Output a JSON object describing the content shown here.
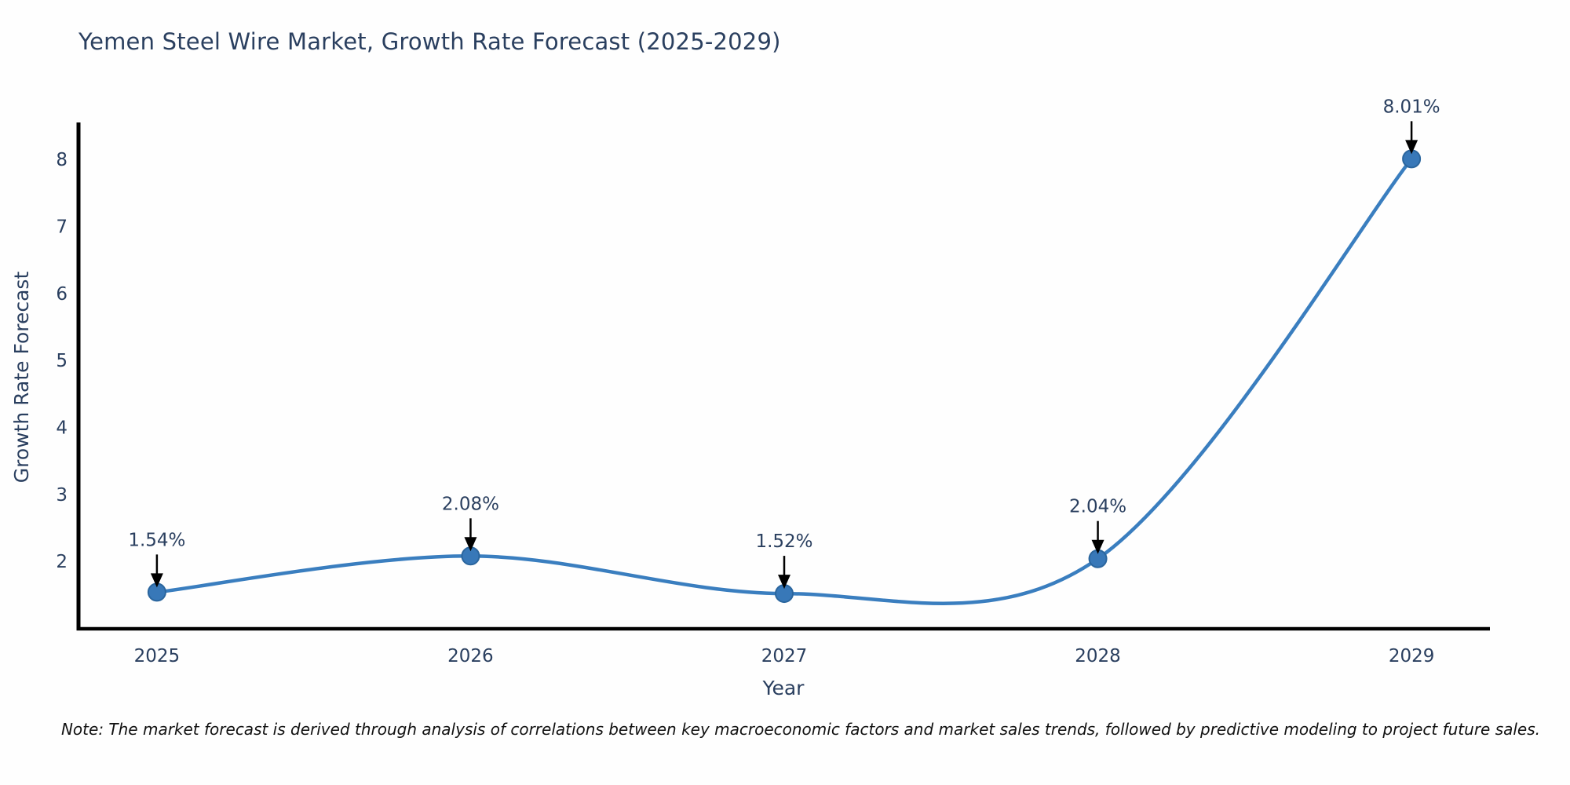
{
  "title": "Yemen Steel Wire Market, Growth Rate Forecast (2025-2029)",
  "note": "Note: The market forecast is derived through analysis of correlations between key macroeconomic factors and market sales trends, followed by predictive modeling to project future sales.",
  "chart_data": {
    "type": "line",
    "title": "Yemen Steel Wire Market, Growth Rate Forecast (2025-2029)",
    "xlabel": "Year",
    "ylabel": "Growth Rate Forecast",
    "x": [
      2025,
      2026,
      2027,
      2028,
      2029
    ],
    "values": [
      1.54,
      2.08,
      1.52,
      2.04,
      8.01
    ],
    "point_labels": [
      "1.54%",
      "2.08%",
      "1.52%",
      "2.04%",
      "8.01%"
    ],
    "x_tick_labels": [
      "2025",
      "2026",
      "2027",
      "2028",
      "2029"
    ],
    "y_tick_values": [
      2,
      3,
      4,
      5,
      6,
      7,
      8
    ],
    "xlim": [
      2024.745,
      2029.25
    ],
    "ylim": [
      0.97,
      8.53
    ],
    "line_shape": "spline",
    "grid": false,
    "legend": "none",
    "colors": {
      "line": "#3a7ebf",
      "marker_fill": "#3878b8",
      "marker_edge": "#2b669e",
      "axis_line": "#000000",
      "tick_text": "#2a3f5f",
      "annotation_text": "#2a3f5f",
      "annotation_arrow": "#000000",
      "title_text": "#2a3f5f",
      "note_text": "#111111",
      "background": "#fefefe"
    }
  }
}
